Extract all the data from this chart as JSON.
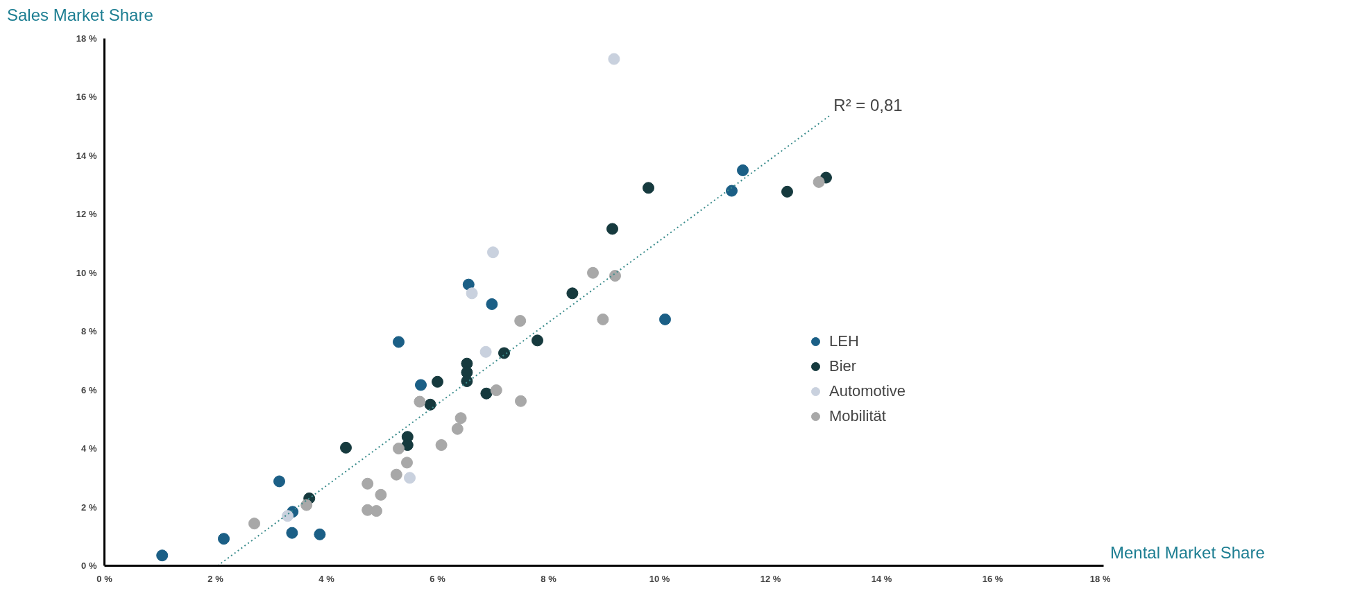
{
  "chart_data": {
    "type": "scatter",
    "xlabel": "Mental Market Share",
    "ylabel": "Sales Market Share",
    "xlim": [
      0,
      18
    ],
    "ylim": [
      0,
      18
    ],
    "xticks": [
      {
        "value": 0,
        "label": "0 %"
      },
      {
        "value": 2,
        "label": "2 %"
      },
      {
        "value": 4,
        "label": "4 %"
      },
      {
        "value": 6,
        "label": "6 %"
      },
      {
        "value": 8,
        "label": "8 %"
      },
      {
        "value": 10,
        "label": "10 %"
      },
      {
        "value": 12,
        "label": "12 %"
      },
      {
        "value": 14,
        "label": "14 %"
      },
      {
        "value": 16,
        "label": "16 %"
      },
      {
        "value": 18,
        "label": "18 %"
      }
    ],
    "yticks": [
      {
        "value": 0,
        "label": "0 %"
      },
      {
        "value": 2,
        "label": "2 %"
      },
      {
        "value": 4,
        "label": "4 %"
      },
      {
        "value": 6,
        "label": "6 %"
      },
      {
        "value": 8,
        "label": "8 %"
      },
      {
        "value": 10,
        "label": "10 %"
      },
      {
        "value": 12,
        "label": "12 %"
      },
      {
        "value": 14,
        "label": "14 %"
      },
      {
        "value": 16,
        "label": "16 %"
      },
      {
        "value": 18,
        "label": "18 %"
      }
    ],
    "grid": false,
    "legend": "right",
    "marker": "circle",
    "series": [
      {
        "name": "LEH",
        "color": "#1b5f86",
        "x": [
          1.04,
          2.15,
          3.38,
          3.88,
          3.39,
          3.15,
          5.3,
          5.7,
          6.56,
          6.98,
          10.1,
          11.3,
          11.5
        ],
        "values": [
          0.35,
          0.92,
          1.12,
          1.07,
          1.84,
          2.88,
          7.64,
          6.17,
          9.6,
          8.93,
          8.41,
          12.8,
          13.5
        ]
      },
      {
        "name": "Bier",
        "color": "#163a3e",
        "x": [
          3.69,
          4.35,
          5.46,
          5.46,
          5.87,
          6.0,
          6.53,
          6.53,
          6.53,
          6.88,
          7.2,
          7.8,
          8.43,
          9.15,
          9.8,
          12.3,
          13.0
        ],
        "values": [
          2.3,
          4.03,
          4.4,
          4.12,
          5.5,
          6.28,
          6.9,
          6.6,
          6.3,
          5.88,
          7.26,
          7.69,
          9.3,
          11.5,
          12.9,
          12.77,
          13.25
        ]
      },
      {
        "name": "Automotive",
        "color": "#c9d1de",
        "x": [
          9.18,
          7.0,
          6.62,
          6.87,
          5.5,
          3.3
        ],
        "values": [
          17.3,
          10.7,
          9.3,
          7.3,
          3.0,
          1.7
        ]
      },
      {
        "name": "Mobilität",
        "color": "#a8a8a8",
        "x": [
          2.7,
          3.64,
          4.74,
          4.9,
          4.74,
          4.98,
          5.26,
          5.45,
          5.3,
          6.07,
          6.36,
          6.42,
          7.06,
          7.5,
          7.49,
          8.98,
          8.8,
          9.2,
          12.87,
          5.68
        ],
        "values": [
          1.44,
          2.07,
          1.9,
          1.87,
          2.8,
          2.42,
          3.11,
          3.52,
          4.0,
          4.12,
          4.67,
          5.04,
          5.99,
          5.62,
          8.36,
          8.41,
          10.0,
          9.9,
          13.1,
          5.6
        ]
      },
      {
        "type": "line",
        "color": "#3a8c8c",
        "line_style": "dotted",
        "marker": "none",
        "x": [
          2.04,
          13.06
        ],
        "values": [
          0,
          15.36
        ]
      }
    ],
    "annotations": [
      {
        "text": "R² = 0,81",
        "x": 13.06,
        "y": 15.36
      }
    ]
  }
}
